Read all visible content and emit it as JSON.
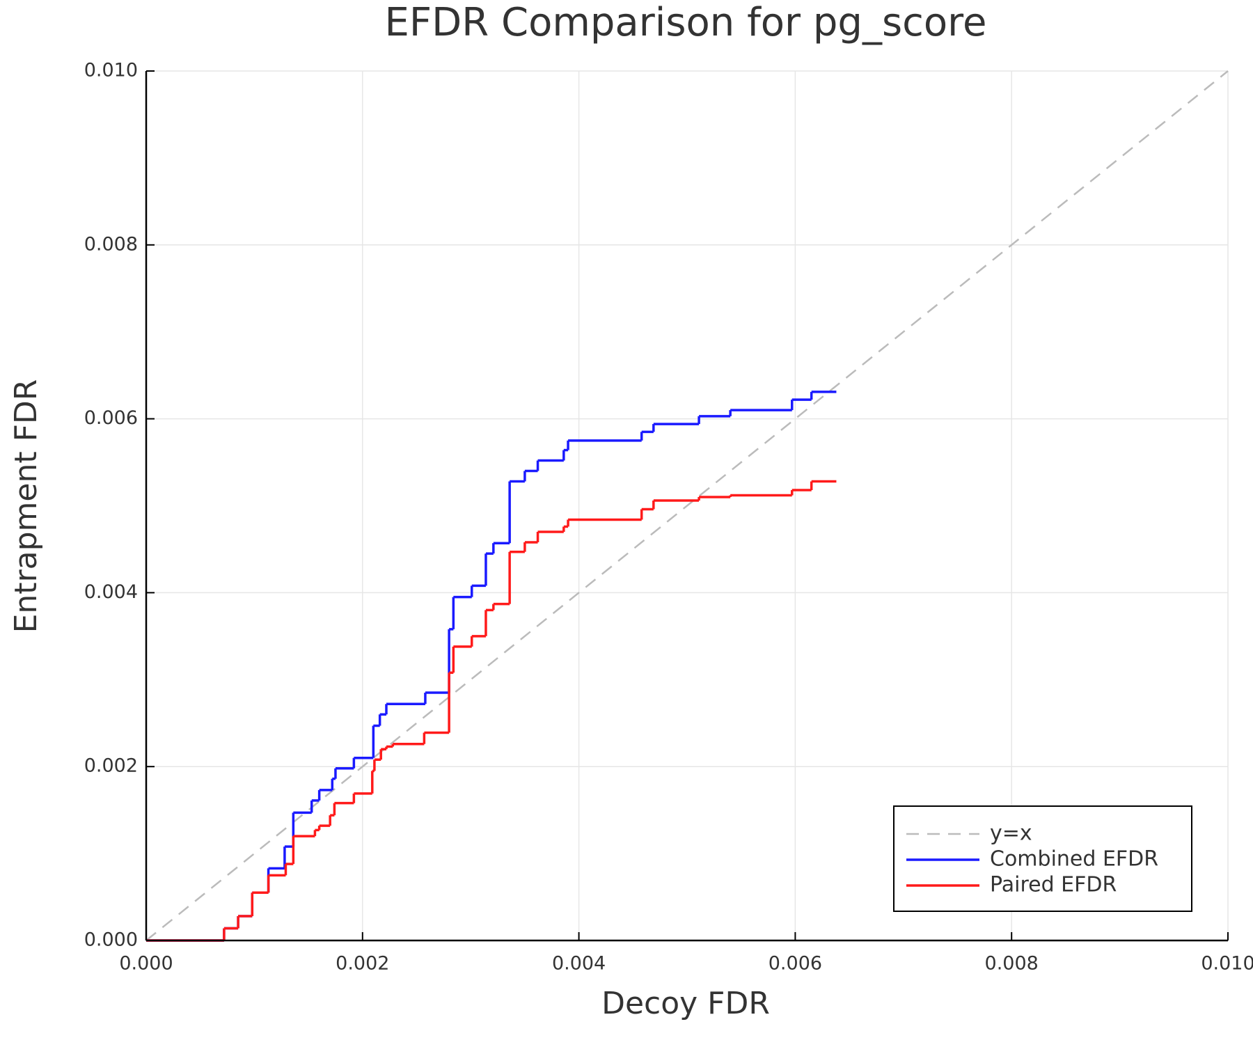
{
  "chart_data": {
    "type": "line",
    "title": "EFDR Comparison for pg_score",
    "x_label": "Decoy FDR",
    "y_label": "Entrapment FDR",
    "xlim": [
      0,
      0.01
    ],
    "ylim": [
      0,
      0.01
    ],
    "xticks": [
      {
        "value": 0,
        "label": "0.000"
      },
      {
        "value": 0.002,
        "label": "0.002"
      },
      {
        "value": 0.004,
        "label": "0.004"
      },
      {
        "value": 0.006,
        "label": "0.006"
      },
      {
        "value": 0.008,
        "label": "0.008"
      },
      {
        "value": 0.01,
        "label": "0.010"
      }
    ],
    "yticks": [
      {
        "value": 0,
        "label": "0.000"
      },
      {
        "value": 0.002,
        "label": "0.002"
      },
      {
        "value": 0.004,
        "label": "0.004"
      },
      {
        "value": 0.006,
        "label": "0.006"
      },
      {
        "value": 0.008,
        "label": "0.008"
      },
      {
        "value": 0.01,
        "label": "0.010"
      }
    ],
    "grid": true,
    "legend": "lower right",
    "series": [
      {
        "name": "y=x",
        "color": "#bbbbbb",
        "dash": true,
        "step": false,
        "x": [
          0,
          0.01
        ],
        "values": [
          0,
          0.01
        ]
      },
      {
        "name": "Combined EFDR",
        "color": "#1a1aff",
        "dash": false,
        "step": true,
        "x": [
          0,
          0.00072,
          0.00085,
          0.00098,
          0.00113,
          0.00128,
          0.00136,
          0.00153,
          0.0016,
          0.00172,
          0.00175,
          0.00192,
          0.0021,
          0.00216,
          0.00222,
          0.00258,
          0.0028,
          0.00284,
          0.00301,
          0.00314,
          0.00321,
          0.00336,
          0.0035,
          0.00362,
          0.00386,
          0.0039,
          0.00458,
          0.00469,
          0.00511,
          0.0054,
          0.00597,
          0.00615,
          0.00638
        ],
        "values": [
          0,
          0.00014,
          0.00028,
          0.00055,
          0.00083,
          0.00108,
          0.00147,
          0.00161,
          0.00173,
          0.00186,
          0.00198,
          0.0021,
          0.00247,
          0.0026,
          0.00272,
          0.00285,
          0.00358,
          0.00395,
          0.00408,
          0.00445,
          0.00457,
          0.00528,
          0.0054,
          0.00552,
          0.00564,
          0.00575,
          0.00585,
          0.00594,
          0.00603,
          0.0061,
          0.00622,
          0.00631,
          0.00631
        ]
      },
      {
        "name": "Paired EFDR",
        "color": "#ff1a1a",
        "dash": false,
        "step": true,
        "x": [
          0,
          0.00072,
          0.00085,
          0.00098,
          0.00113,
          0.00129,
          0.00136,
          0.00156,
          0.0016,
          0.0017,
          0.00174,
          0.00192,
          0.00209,
          0.00211,
          0.00217,
          0.00222,
          0.00228,
          0.00257,
          0.0028,
          0.00284,
          0.00301,
          0.00314,
          0.00321,
          0.00336,
          0.0035,
          0.00362,
          0.00386,
          0.0039,
          0.00458,
          0.00469,
          0.00511,
          0.0054,
          0.00597,
          0.00615,
          0.00638
        ],
        "values": [
          0,
          0.00014,
          0.00028,
          0.00055,
          0.00075,
          0.00088,
          0.0012,
          0.00127,
          0.00132,
          0.00144,
          0.00158,
          0.00169,
          0.00195,
          0.00208,
          0.0022,
          0.00223,
          0.00226,
          0.00239,
          0.00308,
          0.00338,
          0.0035,
          0.0038,
          0.00387,
          0.00447,
          0.00458,
          0.0047,
          0.00476,
          0.00484,
          0.00496,
          0.00506,
          0.0051,
          0.00512,
          0.00518,
          0.00528,
          0.00528
        ]
      }
    ]
  }
}
